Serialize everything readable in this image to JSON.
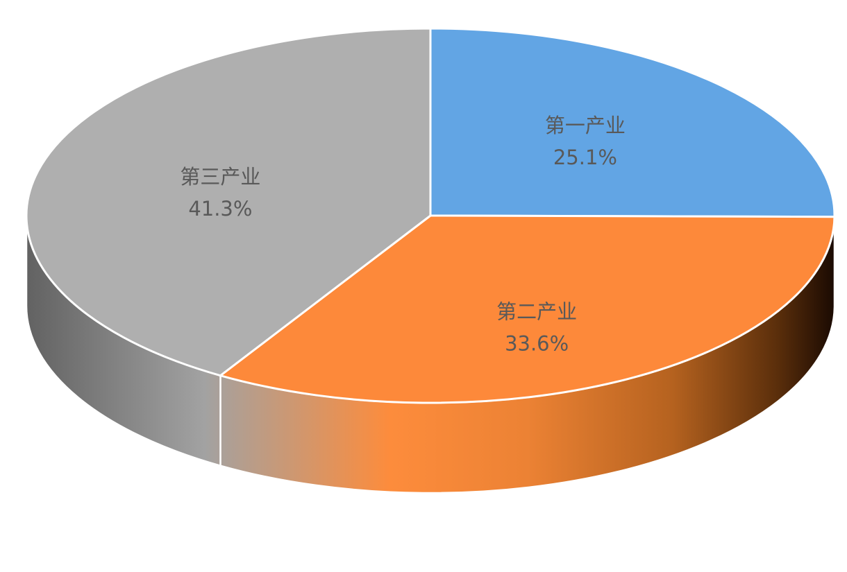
{
  "chart_data": {
    "type": "pie",
    "style": "3d",
    "title": "",
    "slices": [
      {
        "label": "第一产业",
        "value": 25.1,
        "value_label": "25.1%",
        "color": "#62a5e4",
        "side_color": "#3c7bb8"
      },
      {
        "label": "第二产业",
        "value": 33.6,
        "value_label": "33.6%",
        "color": "#fd893a",
        "side_color": "#fd8c3c"
      },
      {
        "label": "第三产业",
        "value": 41.3,
        "value_label": "41.3%",
        "color": "#afafaf",
        "side_color": "#8c8c8c"
      }
    ],
    "start_angle_deg": 0,
    "direction": "clockwise",
    "legend": "none"
  }
}
